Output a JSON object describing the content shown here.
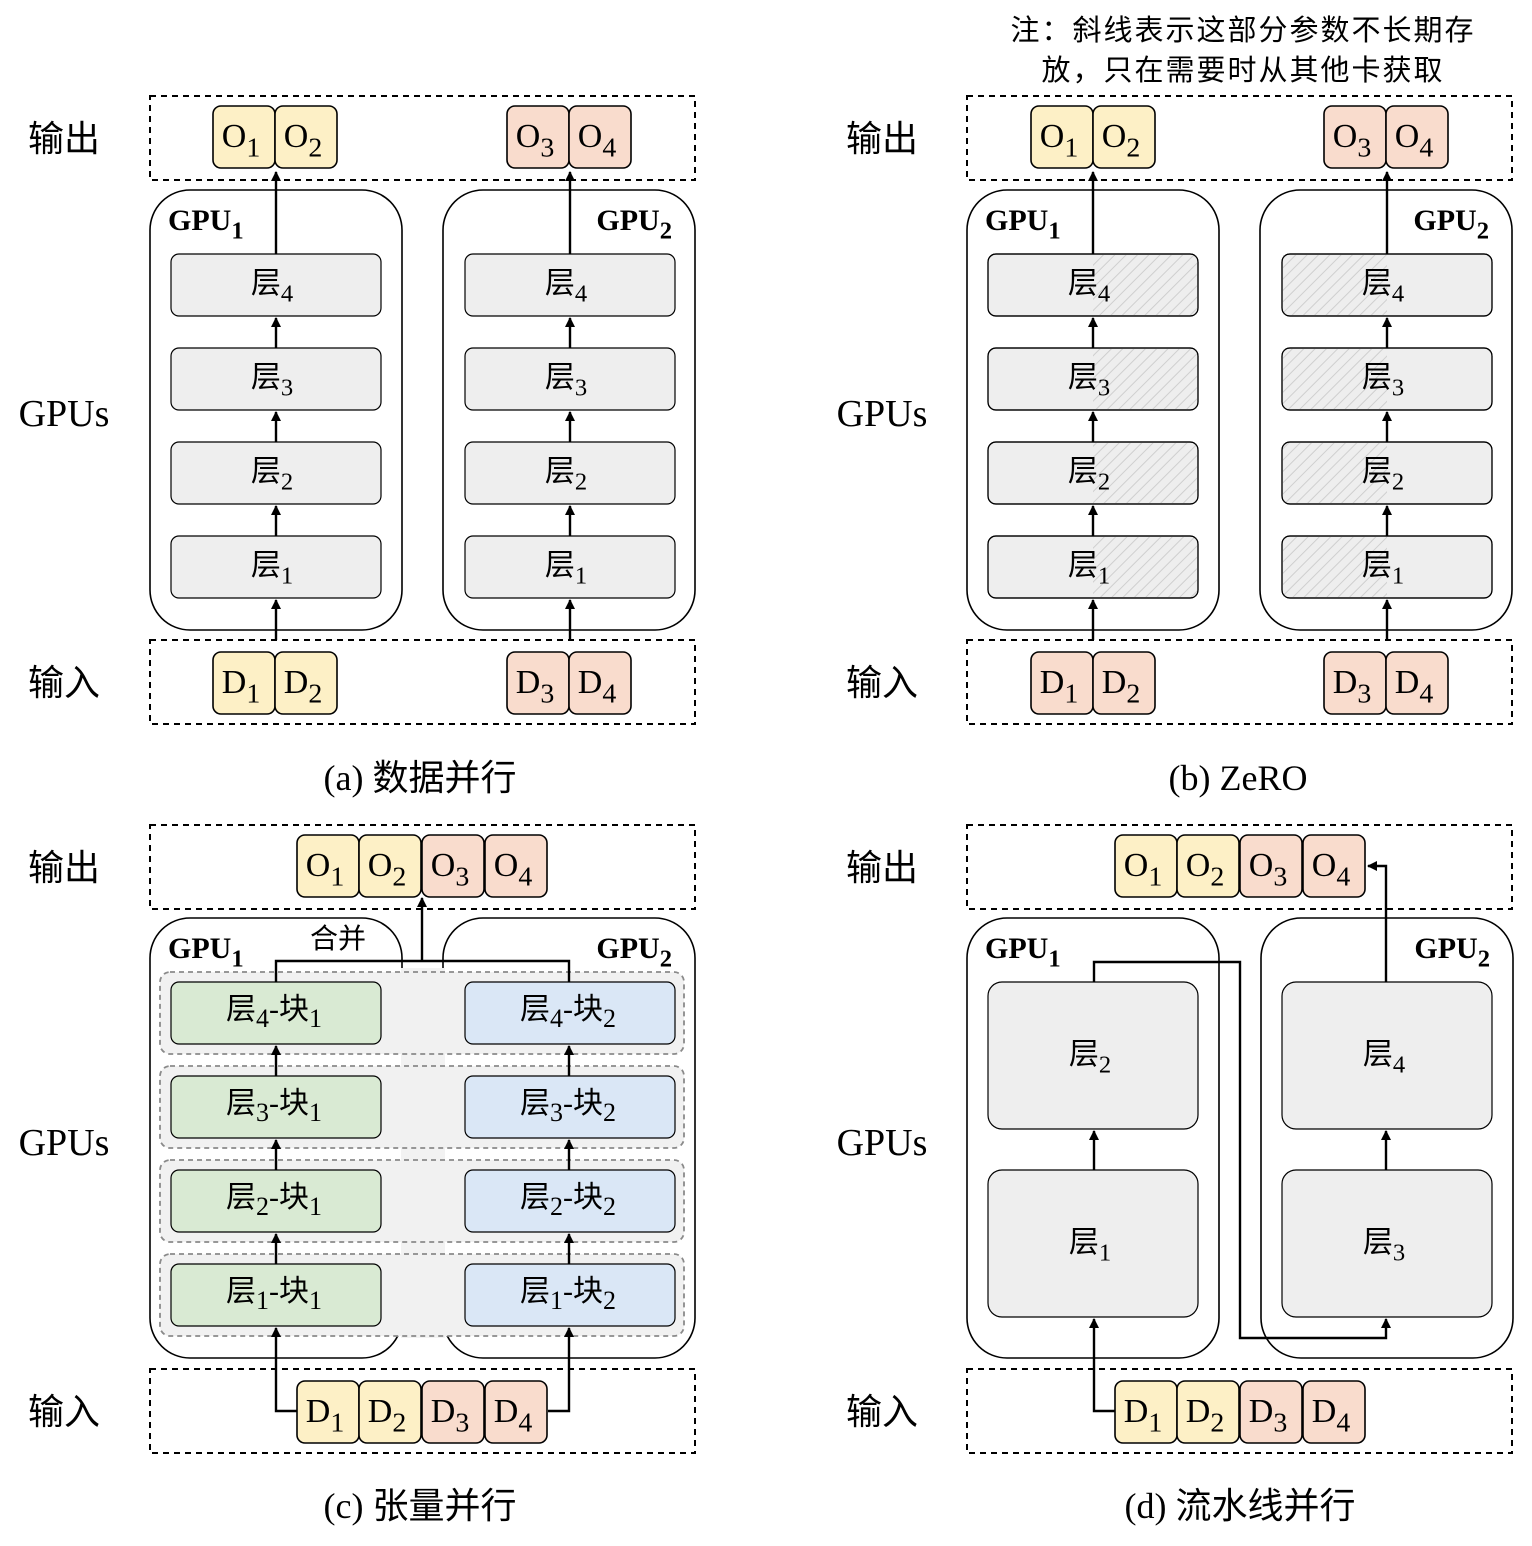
{
  "note": {
    "line1": "注：斜线表示这部分参数不长期存",
    "line2": "放，只在需要时从其他卡获取"
  },
  "row_labels": {
    "output": "输出",
    "gpus": "GPUs",
    "input": "输入"
  },
  "gpu_labels": {
    "gpu1": {
      "base": "GPU",
      "sub": "1"
    },
    "gpu2": {
      "base": "GPU",
      "sub": "2"
    }
  },
  "layer_char": "层",
  "block_char": "块",
  "merge_label": "合并",
  "outputs": [
    {
      "base": "O",
      "sub": "1"
    },
    {
      "base": "O",
      "sub": "2"
    },
    {
      "base": "O",
      "sub": "3"
    },
    {
      "base": "O",
      "sub": "4"
    }
  ],
  "inputs": [
    {
      "base": "D",
      "sub": "1"
    },
    {
      "base": "D",
      "sub": "2"
    },
    {
      "base": "D",
      "sub": "3"
    },
    {
      "base": "D",
      "sub": "4"
    }
  ],
  "panels": [
    {
      "id": "a",
      "caption": "(a)  数据并行"
    },
    {
      "id": "b",
      "caption": "(b) ZeRO"
    },
    {
      "id": "c",
      "caption": "(c) 张量并行"
    },
    {
      "id": "d",
      "caption": "(d) 流水线并行"
    }
  ],
  "colors": {
    "yellow": "#fdf0c6",
    "pink": "#f9dccd",
    "layer_gray": "#eeeeee",
    "green": "#d9ead3",
    "blue": "#dae7f6",
    "stroke": "#000000",
    "hatch": "#c8c8c8"
  }
}
